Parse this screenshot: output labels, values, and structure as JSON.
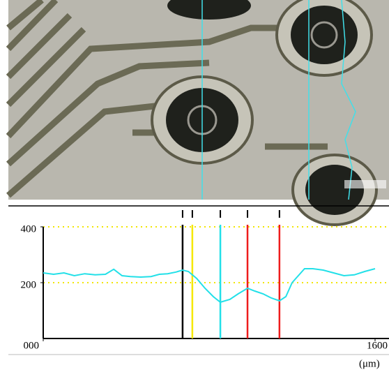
{
  "chart_data": {
    "type": "line",
    "x": [
      0,
      50,
      100,
      150,
      200,
      250,
      300,
      340,
      380,
      420,
      470,
      520,
      560,
      600,
      640,
      672,
      700,
      740,
      780,
      820,
      854,
      900,
      940,
      985,
      1020,
      1060,
      1100,
      1139,
      1170,
      1200,
      1260,
      1300,
      1350,
      1400,
      1450,
      1500,
      1550,
      1600
    ],
    "series": [
      {
        "color": "#22e0e8",
        "values": [
          235,
          230,
          235,
          225,
          232,
          228,
          230,
          248,
          225,
          222,
          220,
          222,
          230,
          232,
          238,
          245,
          240,
          215,
          180,
          150,
          130,
          140,
          160,
          180,
          170,
          160,
          145,
          135,
          150,
          200,
          250,
          250,
          245,
          235,
          225,
          228,
          240,
          250
        ]
      }
    ],
    "xlim": [
      0,
      1600
    ],
    "ylim": [
      0,
      400
    ],
    "xticks": [
      {
        "value": 0,
        "label": "000"
      },
      1600
    ],
    "yticks": [
      400,
      200
    ],
    "x_unit": "(μm)",
    "reference_lines": [
      {
        "value": 400,
        "color": "#f2e600"
      },
      {
        "value": 200,
        "color": "#f2e600"
      }
    ],
    "markers": [
      {
        "x": 672,
        "color": "#000000"
      },
      {
        "x": 719,
        "color": "#f5e800"
      },
      {
        "x": 854,
        "color": "#22e0e8"
      },
      {
        "x": 985,
        "color": "#ee1c1c"
      },
      {
        "x": 1139,
        "color": "#ee1c1c"
      }
    ]
  }
}
